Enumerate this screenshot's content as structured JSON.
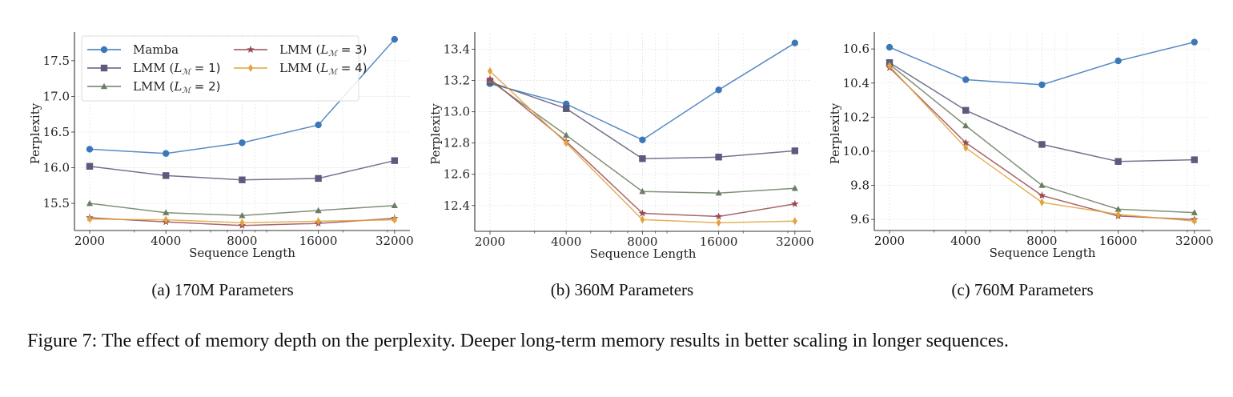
{
  "figure": {
    "caption": "Figure 7: The effect of memory depth on the perplexity. Deeper long-term memory results in better scaling in longer sequences."
  },
  "series_style": [
    {
      "name": "Mamba",
      "color": "#3b78b9",
      "marker": "circle"
    },
    {
      "name": "LMM (L_M = 1)",
      "color": "#5c5a7e",
      "marker": "square"
    },
    {
      "name": "LMM (L_M = 2)",
      "color": "#6a7e64",
      "marker": "triangle"
    },
    {
      "name": "LMM (L_M = 3)",
      "color": "#9a4b52",
      "marker": "star"
    },
    {
      "name": "LMM (L_M = 4)",
      "color": "#e1a33c",
      "marker": "diamond"
    }
  ],
  "chart_data": [
    {
      "type": "line",
      "subcaption": "(a) 170M Parameters",
      "xlabel": "Sequence Length",
      "ylabel": "Perplexity",
      "x_scale": "log2",
      "categories": [
        "2000",
        "4000",
        "8000",
        "16000",
        "32000"
      ],
      "x": [
        2000,
        4000,
        8000,
        16000,
        32000
      ],
      "ylim": [
        15.12,
        17.88
      ],
      "yticks": [
        15.5,
        16.0,
        16.5,
        17.0,
        17.5
      ],
      "ytick_labels": [
        "15.5",
        "16.0",
        "16.5",
        "17.0",
        "17.5"
      ],
      "grid": true,
      "legend": {
        "placement": "top-left",
        "columns": 2
      },
      "series": [
        {
          "name": "Mamba",
          "values": [
            16.26,
            16.2,
            16.35,
            16.6,
            17.8
          ]
        },
        {
          "name": "LMM (L_M = 1)",
          "values": [
            16.02,
            15.89,
            15.83,
            15.85,
            16.1
          ]
        },
        {
          "name": "LMM (L_M = 2)",
          "values": [
            15.5,
            15.37,
            15.33,
            15.4,
            15.47
          ]
        },
        {
          "name": "LMM (L_M = 3)",
          "values": [
            15.3,
            15.24,
            15.19,
            15.22,
            15.29
          ]
        },
        {
          "name": "LMM (L_M = 4)",
          "values": [
            15.28,
            15.27,
            15.23,
            15.25,
            15.27
          ]
        }
      ]
    },
    {
      "type": "line",
      "subcaption": "(b) 360M Parameters",
      "xlabel": "Sequence Length",
      "ylabel": "Perplexity",
      "x_scale": "log2",
      "categories": [
        "2000",
        "4000",
        "8000",
        "16000",
        "32000"
      ],
      "x": [
        2000,
        4000,
        8000,
        16000,
        32000
      ],
      "ylim": [
        12.235,
        13.5
      ],
      "yticks": [
        12.4,
        12.6,
        12.8,
        13.0,
        13.2,
        13.4
      ],
      "ytick_labels": [
        "12.4",
        "12.6",
        "12.8",
        "13.0",
        "13.2",
        "13.4"
      ],
      "grid": true,
      "legend": null,
      "series": [
        {
          "name": "Mamba",
          "values": [
            13.18,
            13.05,
            12.82,
            13.14,
            13.44
          ]
        },
        {
          "name": "LMM (L_M = 1)",
          "values": [
            13.19,
            13.02,
            12.7,
            12.71,
            12.75
          ]
        },
        {
          "name": "LMM (L_M = 2)",
          "values": [
            13.2,
            12.85,
            12.49,
            12.48,
            12.51
          ]
        },
        {
          "name": "LMM (L_M = 3)",
          "values": [
            13.21,
            12.81,
            12.35,
            12.33,
            12.41
          ]
        },
        {
          "name": "LMM (L_M = 4)",
          "values": [
            13.26,
            12.8,
            12.31,
            12.29,
            12.3
          ]
        }
      ]
    },
    {
      "type": "line",
      "subcaption": "(c) 760M Parameters",
      "xlabel": "Sequence Length",
      "ylabel": "Perplexity",
      "x_scale": "log2",
      "categories": [
        "2000",
        "4000",
        "8000",
        "16000",
        "32000"
      ],
      "x": [
        2000,
        4000,
        8000,
        16000,
        32000
      ],
      "ylim": [
        9.535,
        10.69
      ],
      "yticks": [
        9.6,
        9.8,
        10.0,
        10.2,
        10.4,
        10.6
      ],
      "ytick_labels": [
        "9.6",
        "9.8",
        "10.0",
        "10.2",
        "10.4",
        "10.6"
      ],
      "grid": true,
      "legend": null,
      "series": [
        {
          "name": "Mamba",
          "values": [
            10.61,
            10.42,
            10.39,
            10.53,
            10.64
          ]
        },
        {
          "name": "LMM (L_M = 1)",
          "values": [
            10.52,
            10.24,
            10.04,
            9.94,
            9.95
          ]
        },
        {
          "name": "LMM (L_M = 2)",
          "values": [
            10.51,
            10.15,
            9.8,
            9.66,
            9.64
          ]
        },
        {
          "name": "LMM (L_M = 3)",
          "values": [
            10.49,
            10.05,
            9.74,
            9.62,
            9.6
          ]
        },
        {
          "name": "LMM (L_M = 4)",
          "values": [
            10.5,
            10.02,
            9.7,
            9.63,
            9.59
          ]
        }
      ]
    }
  ]
}
